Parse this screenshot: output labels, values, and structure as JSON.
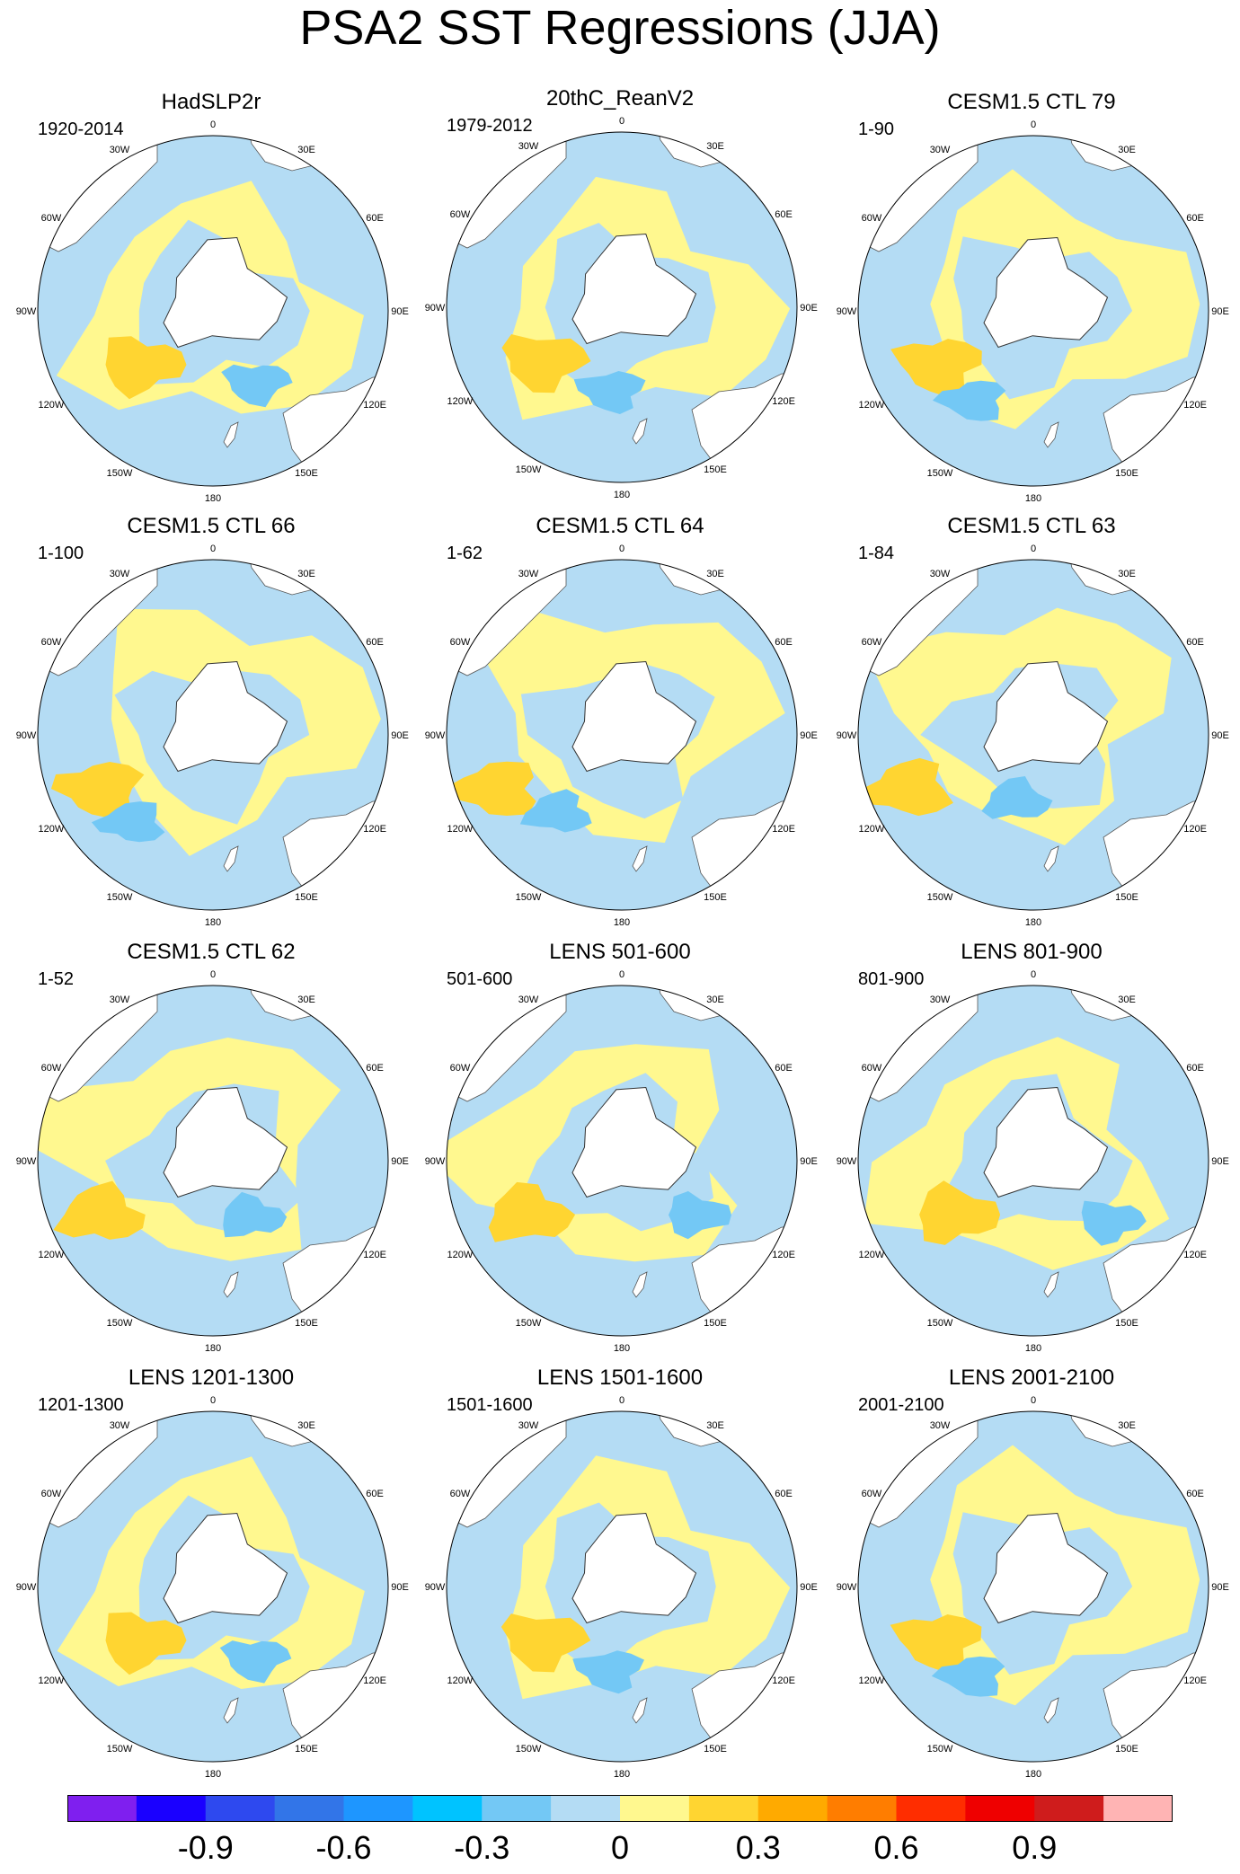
{
  "title": "PSA2 SST Regressions (JJA)",
  "longitude_labels": [
    "0",
    "30E",
    "60E",
    "90E",
    "120E",
    "150E",
    "180",
    "150W",
    "120W",
    "90W",
    "60W",
    "30W"
  ],
  "panels": [
    {
      "title": "HadSLP2r",
      "period": "1920-2014"
    },
    {
      "title": "20thC_ReanV2",
      "period": "1979-2012"
    },
    {
      "title": "CESM1.5 CTL 79",
      "period": "1-90"
    },
    {
      "title": "CESM1.5 CTL 66",
      "period": "1-100"
    },
    {
      "title": "CESM1.5 CTL 64",
      "period": "1-62"
    },
    {
      "title": "CESM1.5 CTL 63",
      "period": "1-84"
    },
    {
      "title": "CESM1.5 CTL 62",
      "period": "1-52"
    },
    {
      "title": "LENS 501-600",
      "period": "501-600"
    },
    {
      "title": "LENS 801-900",
      "period": "801-900"
    },
    {
      "title": "LENS 1201-1300",
      "period": "1201-1300"
    },
    {
      "title": "LENS 1501-1600",
      "period": "1501-1600"
    },
    {
      "title": "LENS 2001-2100",
      "period": "2001-2100"
    }
  ],
  "colorbar": {
    "colors": [
      "#7f1fef",
      "#1a00ff",
      "#2e49ef",
      "#3275e8",
      "#1e96ff",
      "#00c3ff",
      "#73c8f5",
      "#b4dcf4",
      "#fff88f",
      "#ffd531",
      "#ffaa00",
      "#ff7d00",
      "#ff2d00",
      "#ef0000",
      "#cf1c1c",
      "#ffb4b4"
    ],
    "tick_labels": [
      "-0.9",
      "-0.6",
      "-0.3",
      "0",
      "0.3",
      "0.6",
      "0.9"
    ]
  },
  "palette": {
    "negative": "#b4dcf4",
    "positive": "#fff88f",
    "strong_negative": "#73c8f5",
    "strong_positive": "#ffd531",
    "land": "#ffffff"
  }
}
